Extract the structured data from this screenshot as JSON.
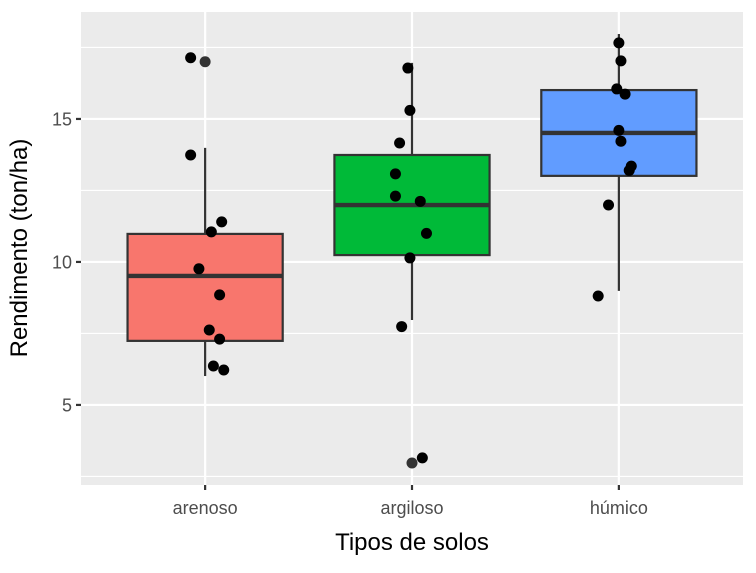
{
  "chart_data": {
    "type": "boxplot",
    "title": "",
    "xlabel": "Tipos de solos",
    "ylabel": "Rendimento (ton/ha)",
    "ylim": [
      2.2,
      18.74
    ],
    "yticks": [
      5,
      10,
      15
    ],
    "minor_yticks": [
      2.5,
      7.5,
      12.5,
      17.5
    ],
    "grid": true,
    "legend": "none",
    "categories": [
      "arenoso",
      "argiloso",
      "húmico"
    ],
    "colors": [
      "#F8766D",
      "#00BA38",
      "#619CFF"
    ],
    "boxes": [
      {
        "name": "arenoso",
        "whisker_low": 6.01,
        "q1": 7.24,
        "median": 9.51,
        "q3": 10.98,
        "whisker_high": 13.99,
        "outliers": [
          17.0
        ]
      },
      {
        "name": "argiloso",
        "whisker_low": 7.97,
        "q1": 10.24,
        "median": 11.99,
        "q3": 13.74,
        "whisker_high": 16.96,
        "outliers": [
          2.97
        ]
      },
      {
        "name": "húmico",
        "whisker_low": 8.99,
        "q1": 13.01,
        "median": 14.51,
        "q3": 16.01,
        "whisker_high": 17.97,
        "outliers": []
      }
    ],
    "jitter_points": [
      {
        "group": "arenoso",
        "dx": -0.07,
        "y": 17.14
      },
      {
        "group": "arenoso",
        "dx": -0.07,
        "y": 13.74
      },
      {
        "group": "arenoso",
        "dx": 0.08,
        "y": 11.4
      },
      {
        "group": "arenoso",
        "dx": 0.03,
        "y": 11.05
      },
      {
        "group": "arenoso",
        "dx": -0.03,
        "y": 9.76
      },
      {
        "group": "arenoso",
        "dx": 0.07,
        "y": 8.85
      },
      {
        "group": "arenoso",
        "dx": 0.02,
        "y": 7.62
      },
      {
        "group": "arenoso",
        "dx": 0.07,
        "y": 7.3
      },
      {
        "group": "arenoso",
        "dx": 0.04,
        "y": 6.36
      },
      {
        "group": "arenoso",
        "dx": 0.09,
        "y": 6.22
      },
      {
        "group": "argiloso",
        "dx": -0.02,
        "y": 16.78
      },
      {
        "group": "argiloso",
        "dx": -0.01,
        "y": 15.3
      },
      {
        "group": "argiloso",
        "dx": -0.06,
        "y": 14.16
      },
      {
        "group": "argiloso",
        "dx": -0.08,
        "y": 13.08
      },
      {
        "group": "argiloso",
        "dx": -0.08,
        "y": 12.3
      },
      {
        "group": "argiloso",
        "dx": 0.04,
        "y": 12.12
      },
      {
        "group": "argiloso",
        "dx": 0.07,
        "y": 11.0
      },
      {
        "group": "argiloso",
        "dx": -0.01,
        "y": 10.14
      },
      {
        "group": "argiloso",
        "dx": -0.05,
        "y": 7.74
      },
      {
        "group": "argiloso",
        "dx": 0.05,
        "y": 3.15
      },
      {
        "group": "húmico",
        "dx": 0.0,
        "y": 17.66
      },
      {
        "group": "húmico",
        "dx": 0.01,
        "y": 17.03
      },
      {
        "group": "húmico",
        "dx": -0.01,
        "y": 16.05
      },
      {
        "group": "húmico",
        "dx": 0.03,
        "y": 15.87
      },
      {
        "group": "húmico",
        "dx": 0.0,
        "y": 14.6
      },
      {
        "group": "húmico",
        "dx": 0.01,
        "y": 14.22
      },
      {
        "group": "húmico",
        "dx": 0.06,
        "y": 13.35
      },
      {
        "group": "húmico",
        "dx": 0.05,
        "y": 13.2
      },
      {
        "group": "húmico",
        "dx": -0.05,
        "y": 11.99
      },
      {
        "group": "húmico",
        "dx": -0.1,
        "y": 8.81
      }
    ]
  },
  "theme": {
    "panel_bg": "#EBEBEB",
    "grid_color": "#FFFFFF",
    "box_line": "#333333",
    "outlier_color": "#333333",
    "point_color": "#000000"
  }
}
